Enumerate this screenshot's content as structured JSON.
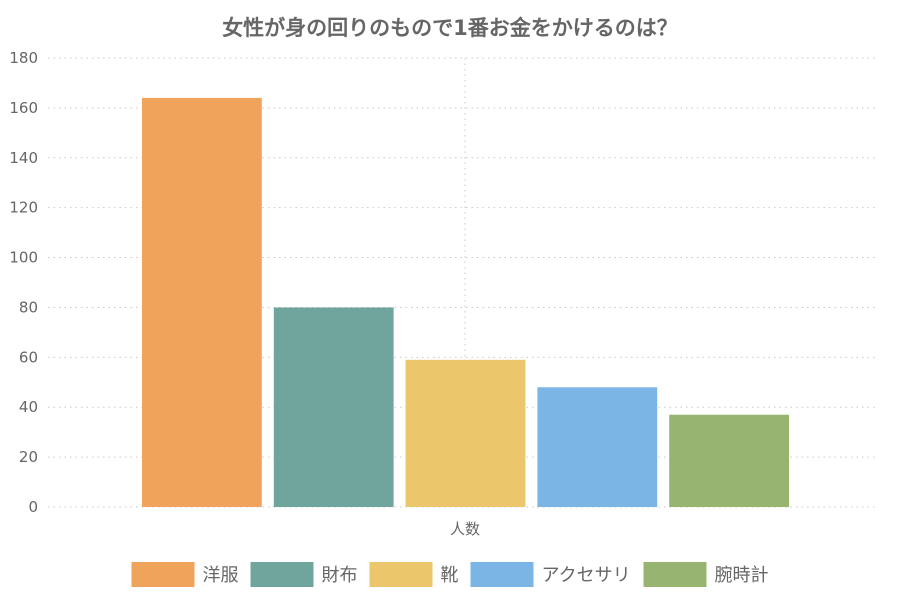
{
  "chart_data": {
    "type": "bar",
    "title": "女性が身の回りのもので1番お金をかけるのは？",
    "categories": [
      "人数"
    ],
    "series": [
      {
        "name": "洋服",
        "values": [
          164
        ],
        "color": "#F0A35A"
      },
      {
        "name": "財布",
        "values": [
          80
        ],
        "color": "#70A59E"
      },
      {
        "name": "靴",
        "values": [
          59
        ],
        "color": "#ECC66A"
      },
      {
        "name": "アクセサリ",
        "values": [
          48
        ],
        "color": "#7AB5E5"
      },
      {
        "name": "腕時計",
        "values": [
          37
        ],
        "color": "#97B571"
      }
    ],
    "yticks": [
      "0",
      "20",
      "40",
      "60",
      "80",
      "100",
      "120",
      "140",
      "160",
      "180"
    ],
    "ylim": [
      0,
      180
    ],
    "grid": true,
    "legend_position": "bottom"
  }
}
